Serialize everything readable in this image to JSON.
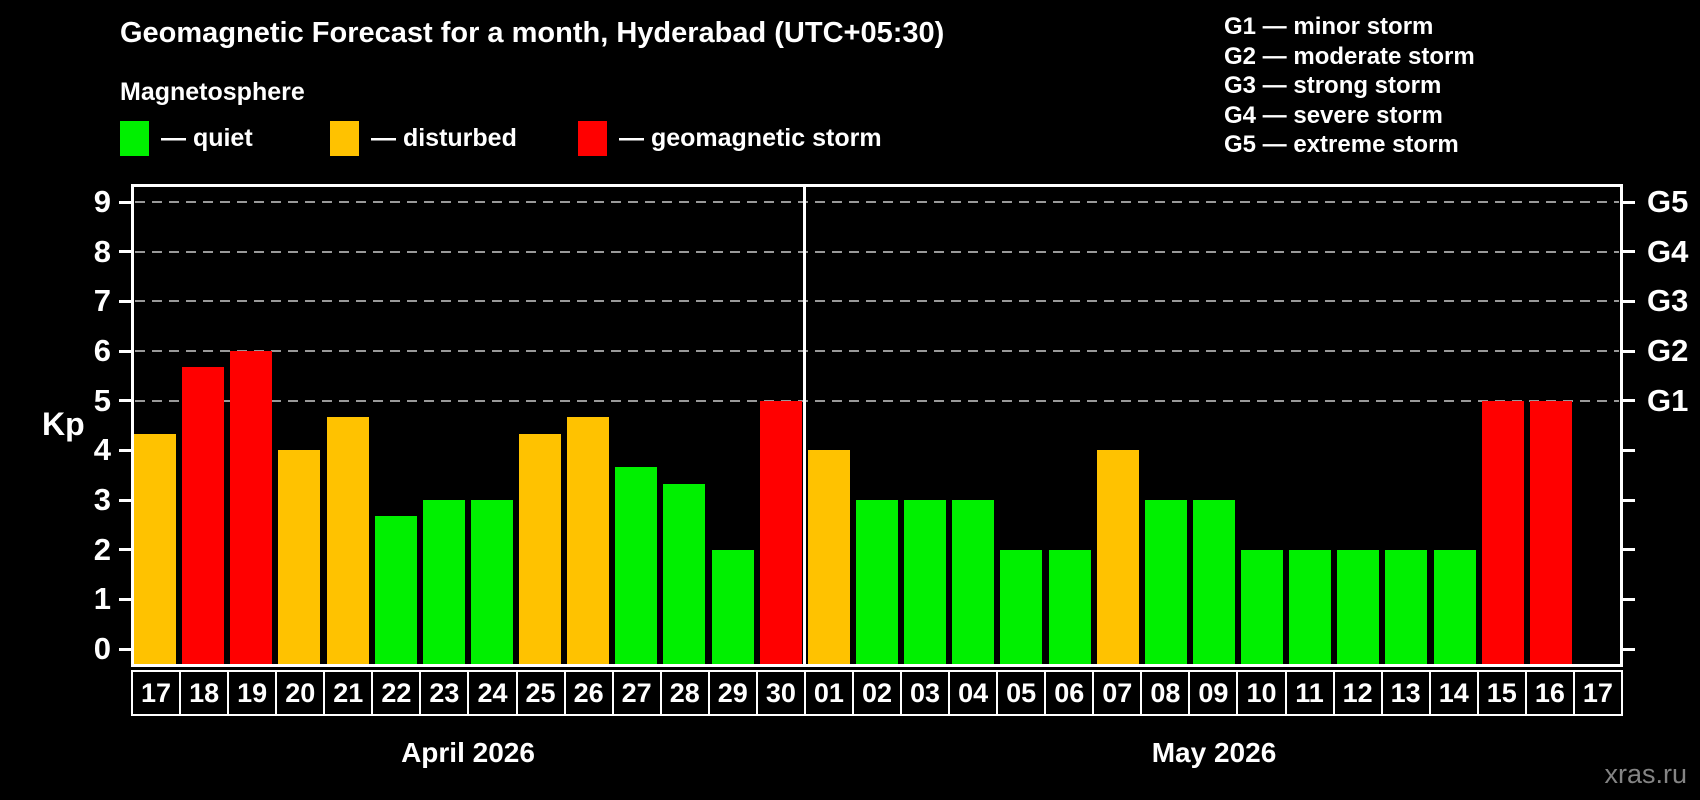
{
  "title": "Geomagnetic Forecast for a month, Hyderabad (UTC+05:30)",
  "subtitle": "Magnetosphere",
  "legend": {
    "items": [
      {
        "name": "quiet",
        "label": "— quiet",
        "color": "#00f000"
      },
      {
        "name": "disturbed",
        "label": "— disturbed",
        "color": "#ffc200"
      },
      {
        "name": "storm",
        "label": "— geomagnetic storm",
        "color": "#ff0000"
      }
    ]
  },
  "storm_scale_legend": [
    "G1 — minor storm",
    "G2 — moderate storm",
    "G3 — strong storm",
    "G4 — severe storm",
    "G5 — extreme storm"
  ],
  "watermark": "xras.ru",
  "chart_data": {
    "type": "bar",
    "title": "Geomagnetic Forecast for a month, Hyderabad (UTC+05:30)",
    "ylabel": "Kp",
    "xlabel": "",
    "ylim": [
      0,
      9
    ],
    "axis_padding_kp": 0.36,
    "y_ticks": [
      0,
      1,
      2,
      3,
      4,
      5,
      6,
      7,
      8,
      9
    ],
    "gridlines_at_kp": [
      5,
      6,
      7,
      8,
      9
    ],
    "grid": "dashed horizontal at Kp 5-9 only",
    "right_axis_labels": [
      {
        "label": "G1",
        "kp": 5
      },
      {
        "label": "G2",
        "kp": 6
      },
      {
        "label": "G3",
        "kp": 7
      },
      {
        "label": "G4",
        "kp": 8
      },
      {
        "label": "G5",
        "kp": 9
      }
    ],
    "status_colors": {
      "quiet": "#00f000",
      "disturbed": "#ffc200",
      "storm": "#ff0000"
    },
    "months": [
      {
        "label": "April 2026",
        "days": [
          "17",
          "18",
          "19",
          "20",
          "21",
          "22",
          "23",
          "24",
          "25",
          "26",
          "27",
          "28",
          "29",
          "30"
        ],
        "values": [
          4.33,
          5.67,
          6,
          4,
          4.67,
          2.67,
          3,
          3,
          4.33,
          4.67,
          3.67,
          3.33,
          2,
          5
        ],
        "status": [
          "disturbed",
          "storm",
          "storm",
          "disturbed",
          "disturbed",
          "quiet",
          "quiet",
          "quiet",
          "disturbed",
          "disturbed",
          "quiet",
          "quiet",
          "quiet",
          "storm"
        ]
      },
      {
        "label": "May 2026",
        "days": [
          "01",
          "02",
          "03",
          "04",
          "05",
          "06",
          "07",
          "08",
          "09",
          "10",
          "11",
          "12",
          "13",
          "14",
          "15",
          "16",
          "17"
        ],
        "values": [
          4,
          3,
          3,
          3,
          2,
          2,
          4,
          3,
          3,
          2,
          2,
          2,
          2,
          2,
          5,
          5,
          null
        ],
        "status": [
          "disturbed",
          "quiet",
          "quiet",
          "quiet",
          "quiet",
          "quiet",
          "disturbed",
          "quiet",
          "quiet",
          "quiet",
          "quiet",
          "quiet",
          "quiet",
          "quiet",
          "storm",
          "storm",
          null
        ]
      }
    ]
  }
}
